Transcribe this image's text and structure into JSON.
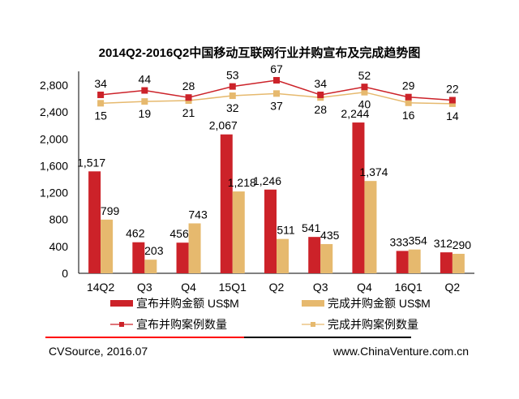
{
  "chart_data": {
    "type": "bar",
    "title": "2014Q2-2016Q2中国移动互联网行业并购宣布及完成趋势图",
    "categories": [
      "14Q2",
      "Q3",
      "Q4",
      "15Q1",
      "Q2",
      "Q3",
      "Q4",
      "16Q1",
      "Q2"
    ],
    "ylim": [
      0,
      2800
    ],
    "yticks": [
      "0",
      "400",
      "800",
      "1,200",
      "1,600",
      "2,000",
      "2,400",
      "2,800"
    ],
    "ytick_values": [
      0,
      400,
      800,
      1200,
      1600,
      2000,
      2400,
      2800
    ],
    "grid": false,
    "legend_position": "bottom",
    "series": [
      {
        "name": "宣布并购金额 US$M",
        "type": "bar",
        "axis": "primary",
        "color": "#CC2229",
        "values": [
          1517,
          462,
          456,
          2067,
          1246,
          541,
          2244,
          333,
          312
        ],
        "labels": [
          "1,517",
          "462",
          "456",
          "2,067",
          "1,246",
          "541",
          "2,244",
          "333",
          "312"
        ]
      },
      {
        "name": "完成并购金额 US$M",
        "type": "bar",
        "axis": "primary",
        "color": "#E6B96E",
        "values": [
          799,
          203,
          743,
          1218,
          511,
          435,
          1374,
          354,
          290
        ],
        "labels": [
          "799",
          "203",
          "743",
          "1,218",
          "511",
          "435",
          "1,374",
          "354",
          "290"
        ]
      },
      {
        "name": "宣布并购案例数量",
        "type": "line",
        "axis": "secondary",
        "color": "#CC2229",
        "values": [
          34,
          44,
          28,
          53,
          67,
          34,
          52,
          29,
          22
        ]
      },
      {
        "name": "完成并购案例数量",
        "type": "line",
        "axis": "secondary",
        "color": "#E6B96E",
        "values": [
          15,
          19,
          21,
          32,
          37,
          28,
          40,
          16,
          14
        ]
      }
    ]
  },
  "footer": {
    "source": "CVSource, 2016.07",
    "website": "www.ChinaVenture.com.cn"
  },
  "colors": {
    "rule_left": "#FF0000",
    "rule_right": "#000000"
  }
}
